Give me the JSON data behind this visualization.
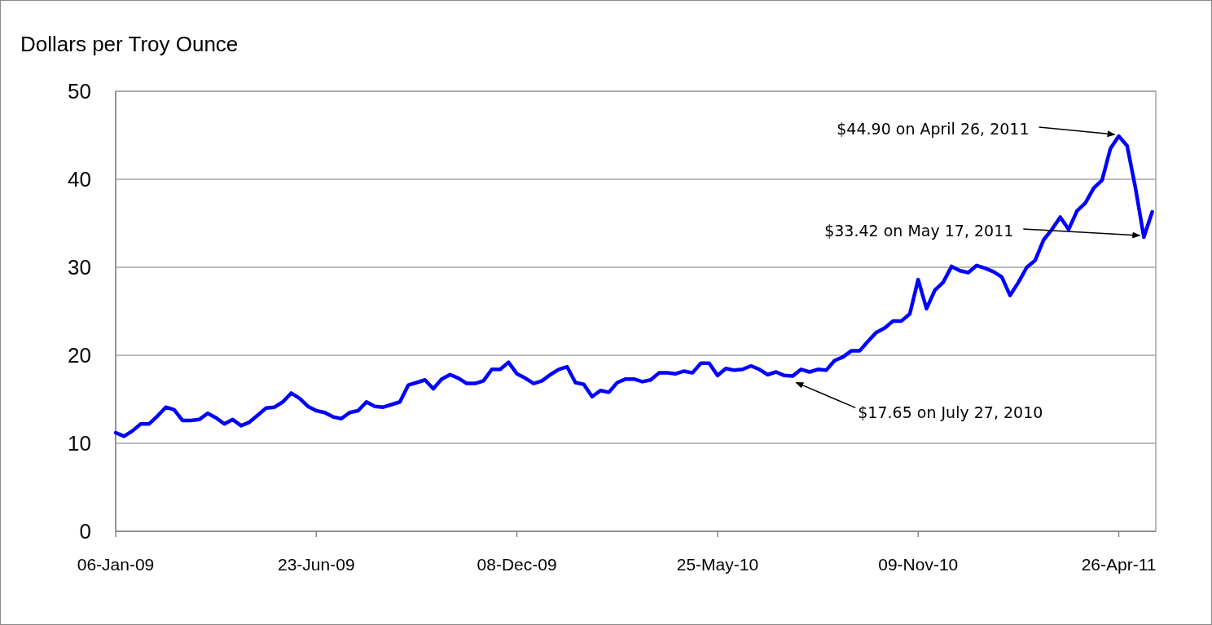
{
  "chart_data": {
    "type": "line",
    "ylabel": "Dollars per Troy Ounce",
    "x": [
      "2009-01-06",
      "2009-01-13",
      "2009-01-20",
      "2009-01-27",
      "2009-02-03",
      "2009-02-10",
      "2009-02-17",
      "2009-02-24",
      "2009-03-03",
      "2009-03-10",
      "2009-03-17",
      "2009-03-24",
      "2009-03-31",
      "2009-04-07",
      "2009-04-14",
      "2009-04-21",
      "2009-04-28",
      "2009-05-05",
      "2009-05-12",
      "2009-05-19",
      "2009-05-26",
      "2009-06-02",
      "2009-06-09",
      "2009-06-16",
      "2009-06-23",
      "2009-06-30",
      "2009-07-07",
      "2009-07-14",
      "2009-07-21",
      "2009-07-28",
      "2009-08-04",
      "2009-08-11",
      "2009-08-18",
      "2009-08-25",
      "2009-09-01",
      "2009-09-08",
      "2009-09-15",
      "2009-09-22",
      "2009-09-29",
      "2009-10-06",
      "2009-10-13",
      "2009-10-20",
      "2009-10-27",
      "2009-11-03",
      "2009-11-10",
      "2009-11-17",
      "2009-11-24",
      "2009-12-01",
      "2009-12-08",
      "2009-12-15",
      "2009-12-22",
      "2009-12-29",
      "2010-01-05",
      "2010-01-12",
      "2010-01-19",
      "2010-01-26",
      "2010-02-02",
      "2010-02-09",
      "2010-02-16",
      "2010-02-23",
      "2010-03-02",
      "2010-03-09",
      "2010-03-16",
      "2010-03-23",
      "2010-03-30",
      "2010-04-06",
      "2010-04-13",
      "2010-04-20",
      "2010-04-27",
      "2010-05-04",
      "2010-05-11",
      "2010-05-18",
      "2010-05-25",
      "2010-06-01",
      "2010-06-08",
      "2010-06-15",
      "2010-06-22",
      "2010-06-29",
      "2010-07-06",
      "2010-07-13",
      "2010-07-20",
      "2010-07-27",
      "2010-08-03",
      "2010-08-10",
      "2010-08-17",
      "2010-08-24",
      "2010-08-31",
      "2010-09-07",
      "2010-09-14",
      "2010-09-21",
      "2010-09-28",
      "2010-10-05",
      "2010-10-12",
      "2010-10-19",
      "2010-10-26",
      "2010-11-02",
      "2010-11-09",
      "2010-11-16",
      "2010-11-23",
      "2010-11-30",
      "2010-12-07",
      "2010-12-14",
      "2010-12-21",
      "2010-12-28",
      "2011-01-04",
      "2011-01-11",
      "2011-01-18",
      "2011-01-25",
      "2011-02-01",
      "2011-02-08",
      "2011-02-15",
      "2011-02-22",
      "2011-03-01",
      "2011-03-08",
      "2011-03-15",
      "2011-03-22",
      "2011-03-29",
      "2011-04-05",
      "2011-04-12",
      "2011-04-19",
      "2011-04-26",
      "2011-05-03",
      "2011-05-10",
      "2011-05-17",
      "2011-05-24"
    ],
    "series": [
      {
        "color": "#0000ff",
        "values": [
          11.2,
          10.8,
          11.4,
          12.2,
          12.2,
          13.1,
          14.1,
          13.8,
          12.6,
          12.6,
          12.7,
          13.4,
          12.9,
          12.2,
          12.7,
          12.0,
          12.4,
          13.2,
          14.0,
          14.1,
          14.7,
          15.7,
          15.1,
          14.2,
          13.7,
          13.5,
          13.0,
          12.8,
          13.5,
          13.7,
          14.7,
          14.2,
          14.1,
          14.4,
          14.7,
          16.6,
          16.9,
          17.2,
          16.2,
          17.3,
          17.8,
          17.4,
          16.8,
          16.8,
          17.1,
          18.4,
          18.4,
          19.2,
          17.9,
          17.4,
          16.8,
          17.1,
          17.8,
          18.4,
          18.7,
          16.9,
          16.7,
          15.3,
          16.0,
          15.8,
          16.9,
          17.3,
          17.3,
          17.0,
          17.2,
          18.0,
          18.0,
          17.9,
          18.2,
          18.0,
          19.1,
          19.1,
          17.7,
          18.5,
          18.3,
          18.4,
          18.8,
          18.4,
          17.8,
          18.1,
          17.7,
          17.65,
          18.4,
          18.1,
          18.4,
          18.3,
          19.4,
          19.8,
          20.5,
          20.5,
          21.6,
          22.6,
          23.1,
          23.9,
          23.9,
          24.7,
          28.6,
          25.3,
          27.4,
          28.3,
          30.1,
          29.6,
          29.4,
          30.2,
          29.9,
          29.5,
          28.9,
          26.8,
          28.3,
          30.0,
          30.8,
          33.1,
          34.3,
          35.7,
          34.3,
          36.4,
          37.3,
          39.0,
          39.9,
          43.5,
          44.9,
          43.8,
          39.0,
          33.42,
          36.3
        ]
      }
    ],
    "xlim": [
      "2009-01-06",
      "2011-05-27"
    ],
    "xticks": [
      {
        "value": "2009-01-06",
        "label": "06-Jan-09"
      },
      {
        "value": "2009-06-23",
        "label": "23-Jun-09"
      },
      {
        "value": "2009-12-08",
        "label": "08-Dec-09"
      },
      {
        "value": "2010-05-25",
        "label": "25-May-10"
      },
      {
        "value": "2010-11-09",
        "label": "09-Nov-10"
      },
      {
        "value": "2011-04-26",
        "label": "26-Apr-11"
      }
    ],
    "ylim": [
      0,
      50
    ],
    "yticks": [
      0,
      10,
      20,
      30,
      40,
      50
    ],
    "grid": "y",
    "marker": "none",
    "line_style": "solid",
    "annotations": [
      {
        "text": "$44.90 on April 26, 2011",
        "x": "2011-04-26",
        "y": 44.9
      },
      {
        "text": "$33.42 on May 17, 2011",
        "x": "2011-05-17",
        "y": 33.42
      },
      {
        "text": "$17.65 on July 27, 2010",
        "x": "2010-07-27",
        "y": 17.65
      }
    ]
  }
}
